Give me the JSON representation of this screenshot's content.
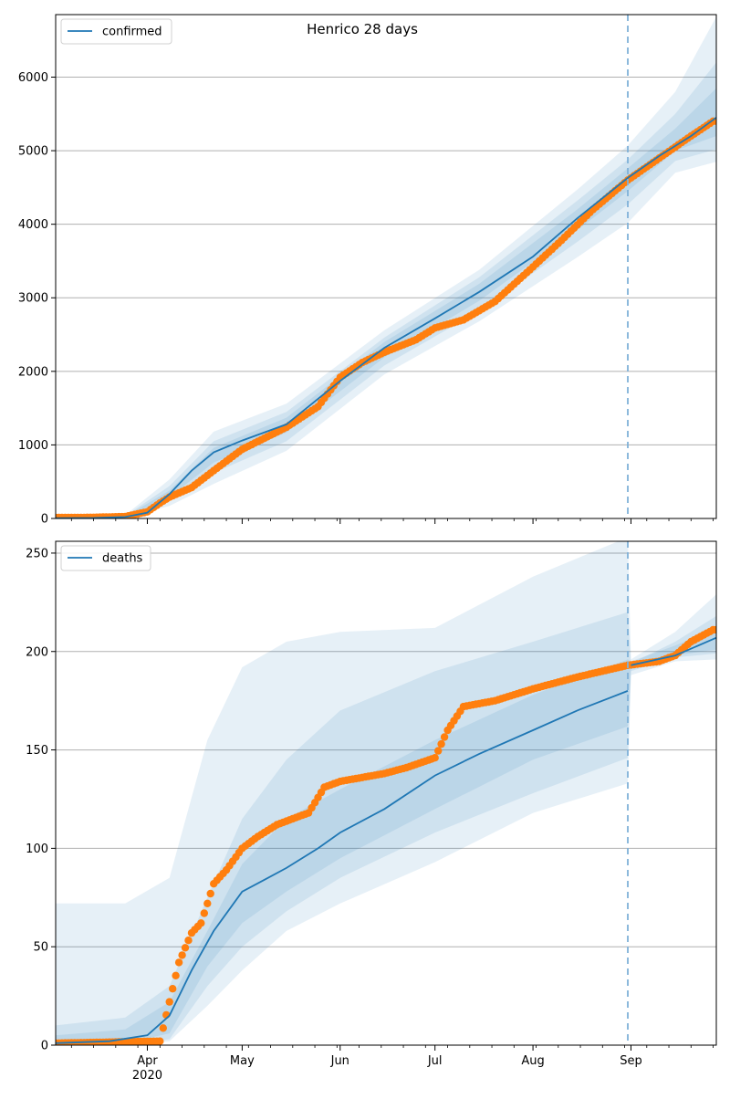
{
  "figure": {
    "title": "Henrico 28 days",
    "forecast_marker_date": "Aug 31 2020",
    "colors": {
      "model_line": "#1f77b4",
      "observed_points": "#ff7f0e",
      "band": "#1f77b4",
      "grid": "#b0b0b0",
      "forecast_marker": "#7fb1d9"
    }
  },
  "chart_data": [
    {
      "type": "line",
      "panel": "top",
      "series_kind": "confirmed",
      "legend": [
        "confirmed"
      ],
      "legend_placement": "upper-left",
      "x_axis": {
        "range": [
          "2020-03-03",
          "2020-09-28"
        ],
        "tick_labels": [],
        "grid": false
      },
      "y_axis": {
        "range": [
          0,
          6850
        ],
        "ticks": [
          0,
          1000,
          2000,
          3000,
          4000,
          5000,
          6000
        ],
        "grid": true
      },
      "series": [
        {
          "name": "confirmed",
          "kind": "model median",
          "x": [
            "2020-03-03",
            "2020-03-15",
            "2020-03-25",
            "2020-04-01",
            "2020-04-08",
            "2020-04-15",
            "2020-04-22",
            "2020-05-01",
            "2020-05-15",
            "2020-06-01",
            "2020-06-15",
            "2020-07-01",
            "2020-07-15",
            "2020-08-01",
            "2020-08-15",
            "2020-08-31",
            "2020-09-10",
            "2020-09-20",
            "2020-09-28"
          ],
          "y": [
            5,
            8,
            20,
            80,
            330,
            650,
            900,
            1060,
            1280,
            1870,
            2320,
            2720,
            3080,
            3560,
            4080,
            4630,
            4930,
            5200,
            5450
          ]
        },
        {
          "name": "observed",
          "kind": "observed points",
          "x": [
            "2020-03-03",
            "2020-03-15",
            "2020-03-25",
            "2020-04-01",
            "2020-04-05",
            "2020-04-08",
            "2020-04-15",
            "2020-04-22",
            "2020-05-01",
            "2020-05-15",
            "2020-05-25",
            "2020-06-01",
            "2020-06-08",
            "2020-06-15",
            "2020-06-25",
            "2020-07-01",
            "2020-07-10",
            "2020-07-20",
            "2020-08-01",
            "2020-08-10",
            "2020-08-20",
            "2020-08-31",
            "2020-09-10",
            "2020-09-20",
            "2020-09-27"
          ],
          "y": [
            12,
            15,
            25,
            90,
            210,
            290,
            420,
            650,
            940,
            1240,
            1520,
            1920,
            2120,
            2260,
            2430,
            2590,
            2700,
            2950,
            3420,
            3780,
            4200,
            4600,
            4900,
            5200,
            5400
          ]
        }
      ],
      "bands": [
        {
          "level": "outer",
          "x": [
            "2020-03-03",
            "2020-03-25",
            "2020-04-08",
            "2020-04-22",
            "2020-05-15",
            "2020-06-15",
            "2020-07-15",
            "2020-08-15",
            "2020-08-31",
            "2020-09-15",
            "2020-09-28"
          ],
          "lower": [
            0,
            10,
            170,
            470,
            920,
            1960,
            2680,
            3550,
            4020,
            4700,
            4850
          ],
          "upper": [
            15,
            45,
            530,
            1180,
            1560,
            2560,
            3380,
            4470,
            5070,
            5800,
            6820
          ]
        },
        {
          "level": "middle",
          "x": [
            "2020-03-03",
            "2020-03-25",
            "2020-04-08",
            "2020-04-22",
            "2020-05-15",
            "2020-06-15",
            "2020-07-15",
            "2020-08-15",
            "2020-08-31",
            "2020-09-15",
            "2020-09-28"
          ],
          "lower": [
            0,
            14,
            240,
            620,
            1050,
            2080,
            2820,
            3760,
            4270,
            4860,
            5020
          ],
          "upper": [
            10,
            32,
            440,
            1050,
            1450,
            2460,
            3280,
            4320,
            4880,
            5500,
            6200
          ]
        },
        {
          "level": "inner",
          "x": [
            "2020-03-03",
            "2020-03-25",
            "2020-04-08",
            "2020-04-22",
            "2020-05-15",
            "2020-06-15",
            "2020-07-15",
            "2020-08-15",
            "2020-08-31",
            "2020-09-15",
            "2020-09-28"
          ],
          "lower": [
            2,
            17,
            290,
            760,
            1170,
            2190,
            2960,
            3920,
            4450,
            5000,
            5200
          ],
          "upper": [
            8,
            25,
            380,
            960,
            1370,
            2400,
            3190,
            4200,
            4760,
            5300,
            5850
          ]
        }
      ]
    },
    {
      "type": "line",
      "panel": "bottom",
      "series_kind": "deaths",
      "legend": [
        "deaths"
      ],
      "legend_placement": "upper-left",
      "x_axis": {
        "range": [
          "2020-03-03",
          "2020-09-28"
        ],
        "tick_labels": [
          "Apr",
          "May",
          "Jun",
          "Jul",
          "Aug",
          "Sep"
        ],
        "tick_dates": [
          "2020-04-01",
          "2020-05-01",
          "2020-06-01",
          "2020-07-01",
          "2020-08-01",
          "2020-09-01"
        ],
        "year_label": "2020",
        "grid": false
      },
      "y_axis": {
        "range": [
          0,
          256
        ],
        "ticks": [
          0,
          50,
          100,
          150,
          200,
          250
        ],
        "grid": true
      },
      "series": [
        {
          "name": "deaths",
          "kind": "model median",
          "x": [
            "2020-03-03",
            "2020-03-20",
            "2020-04-01",
            "2020-04-08",
            "2020-04-15",
            "2020-04-22",
            "2020-05-01",
            "2020-05-08",
            "2020-05-15",
            "2020-05-25",
            "2020-06-01",
            "2020-06-15",
            "2020-07-01",
            "2020-07-15",
            "2020-08-01",
            "2020-08-15",
            "2020-08-31",
            "2020-09-01",
            "2020-09-15",
            "2020-09-28"
          ],
          "y": [
            1,
            2,
            5,
            15,
            38,
            58,
            78,
            84,
            90,
            100,
            108,
            120,
            137,
            148,
            160,
            170,
            180,
            193,
            198,
            207
          ]
        },
        {
          "name": "observed",
          "kind": "observed points",
          "x": [
            "2020-03-03",
            "2020-04-05",
            "2020-04-11",
            "2020-04-15",
            "2020-04-18",
            "2020-04-22",
            "2020-04-26",
            "2020-05-01",
            "2020-05-06",
            "2020-05-12",
            "2020-05-22",
            "2020-05-27",
            "2020-06-01",
            "2020-06-15",
            "2020-06-22",
            "2020-07-01",
            "2020-07-05",
            "2020-07-10",
            "2020-07-20",
            "2020-08-01",
            "2020-08-15",
            "2020-08-31",
            "2020-09-10",
            "2020-09-15",
            "2020-09-20",
            "2020-09-27"
          ],
          "y": [
            1,
            2,
            42,
            57,
            62,
            82,
            89,
            100,
            106,
            112,
            118,
            131,
            134,
            138,
            141,
            146,
            160,
            172,
            175,
            181,
            187,
            193,
            195,
            198,
            205,
            211
          ]
        }
      ],
      "bands": [
        {
          "level": "outer",
          "x": [
            "2020-03-03",
            "2020-03-25",
            "2020-04-08",
            "2020-04-20",
            "2020-05-01",
            "2020-05-15",
            "2020-06-01",
            "2020-07-01",
            "2020-08-01",
            "2020-08-31",
            "2020-09-01",
            "2020-09-15",
            "2020-09-28"
          ],
          "lower": [
            0,
            0,
            2,
            20,
            38,
            58,
            72,
            93,
            118,
            133,
            188,
            195,
            196
          ],
          "upper": [
            72,
            72,
            85,
            155,
            192,
            205,
            210,
            212,
            238,
            258,
            196,
            210,
            229
          ]
        },
        {
          "level": "middle",
          "x": [
            "2020-03-03",
            "2020-03-25",
            "2020-04-08",
            "2020-04-20",
            "2020-05-01",
            "2020-05-15",
            "2020-06-01",
            "2020-07-01",
            "2020-08-01",
            "2020-08-31",
            "2020-09-01",
            "2020-09-15",
            "2020-09-28"
          ],
          "lower": [
            0,
            0,
            3,
            30,
            50,
            68,
            85,
            108,
            128,
            146,
            190,
            197,
            199
          ],
          "upper": [
            10,
            14,
            30,
            75,
            115,
            145,
            170,
            190,
            205,
            220,
            194,
            205,
            218
          ]
        },
        {
          "level": "inner",
          "x": [
            "2020-03-03",
            "2020-03-25",
            "2020-04-08",
            "2020-04-20",
            "2020-05-01",
            "2020-05-15",
            "2020-06-01",
            "2020-07-01",
            "2020-08-01",
            "2020-08-31",
            "2020-09-01",
            "2020-09-15",
            "2020-09-28"
          ],
          "lower": [
            0,
            1,
            6,
            40,
            62,
            78,
            95,
            120,
            145,
            162,
            191,
            198,
            201
          ],
          "upper": [
            5,
            8,
            22,
            58,
            92,
            115,
            130,
            155,
            178,
            196,
            195,
            203,
            212
          ]
        }
      ]
    }
  ]
}
